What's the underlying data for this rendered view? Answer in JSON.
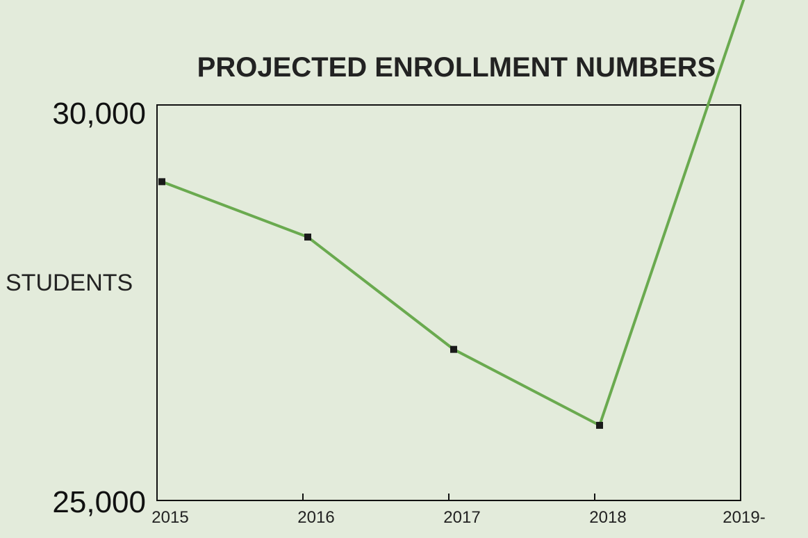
{
  "chart_data": {
    "type": "line",
    "title": "PROJECTED ENROLLMENT NUMBERS",
    "ylabel": "STUDENTS",
    "xlabel": "",
    "ylim": [
      25000,
      30000
    ],
    "y_ticks": [
      "30,000",
      "25,000"
    ],
    "categories": [
      "2015",
      "2016",
      "2017",
      "2018",
      "2019-"
    ],
    "series": [
      {
        "values": [
          29030,
          28330,
          26910,
          25950,
          31400
        ]
      }
    ],
    "grid": false,
    "legend": "none",
    "colors": {
      "line": "#6aaa4f",
      "marker": "#1a1a1a",
      "axes": "#111111",
      "background": "#e3ebdb"
    }
  }
}
